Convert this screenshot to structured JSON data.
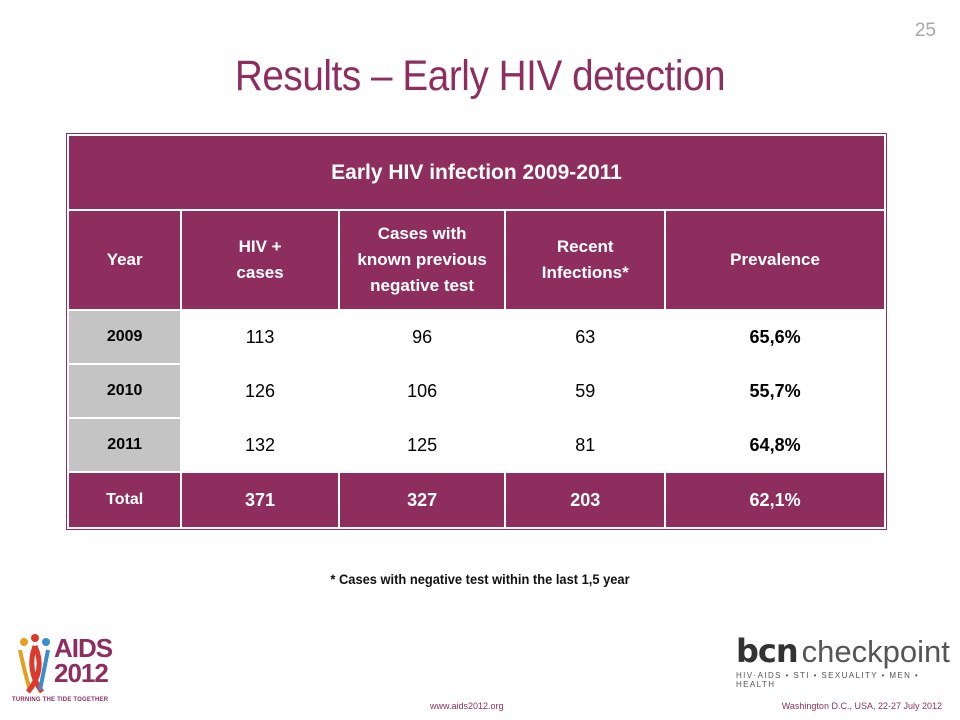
{
  "page_number": "25",
  "title": "Results – Early HIV detection",
  "table": {
    "caption": "Early HIV infection 2009-2011",
    "headers": {
      "year": "Year",
      "hiv_cases_line1": "HIV +",
      "hiv_cases_line2": "cases",
      "known_neg_line1": "Cases with",
      "known_neg_line2": "known previous",
      "known_neg_line3": "negative test",
      "recent_line1": "Recent",
      "recent_line2": "Infections*",
      "prevalence": "Prevalence"
    },
    "rows": [
      {
        "year": "2009",
        "hiv_cases": "113",
        "known_neg": "96",
        "recent": "63",
        "prevalence": "65,6%"
      },
      {
        "year": "2010",
        "hiv_cases": "126",
        "known_neg": "106",
        "recent": "59",
        "prevalence": "55,7%"
      },
      {
        "year": "2011",
        "hiv_cases": "132",
        "known_neg": "125",
        "recent": "81",
        "prevalence": "64,8%"
      }
    ],
    "total": {
      "label": "Total",
      "hiv_cases": "371",
      "known_neg": "327",
      "recent": "203",
      "prevalence": "62,1%"
    }
  },
  "footnote": "* Cases with negative test within the last 1,5 year",
  "footer": {
    "aids_logo_line1": "AIDS",
    "aids_logo_line2": "2012",
    "aids_tagline": "TURNING THE TIDE TOGETHER",
    "url": "www.aids2012.org",
    "event": "Washington D.C., USA, 22-27 July 2012",
    "bcn_word": "bcn",
    "checkpoint_word": "checkpoint",
    "bcn_tagline": "HIV·AIDS • STI • SEXUALITY • MEN • HEALTH"
  },
  "colors": {
    "accent": "#8e2e5f",
    "year_cell": "#c4c4c4"
  }
}
